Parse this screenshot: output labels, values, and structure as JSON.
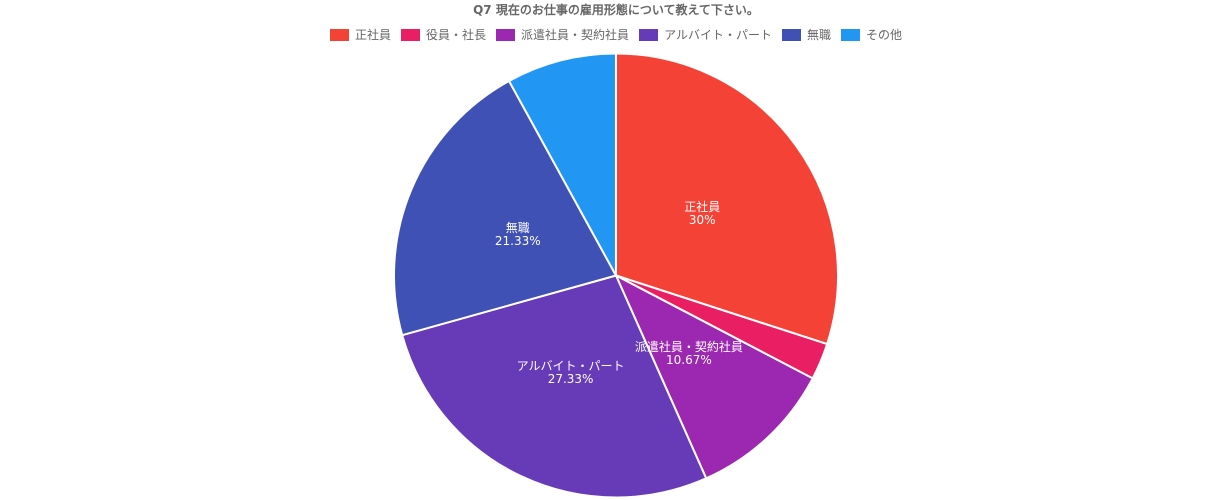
{
  "chart_data": {
    "type": "pie",
    "title": "Q7 現在のお仕事の雇用形態について教えて下さい。",
    "legend_position": "top",
    "categories": [
      "正社員",
      "役員・社長",
      "派遣社員・契約社員",
      "アルバイト・パート",
      "無職",
      "その他"
    ],
    "values": [
      30,
      2.67,
      10.67,
      27.33,
      21.33,
      8
    ],
    "data_labels": [
      "30%",
      "",
      "10.67%",
      "27.33%",
      "21.33%",
      ""
    ],
    "colors": [
      "#f44336",
      "#e91e63",
      "#9c27b0",
      "#673ab7",
      "#3f51b5",
      "#2196f3"
    ]
  }
}
